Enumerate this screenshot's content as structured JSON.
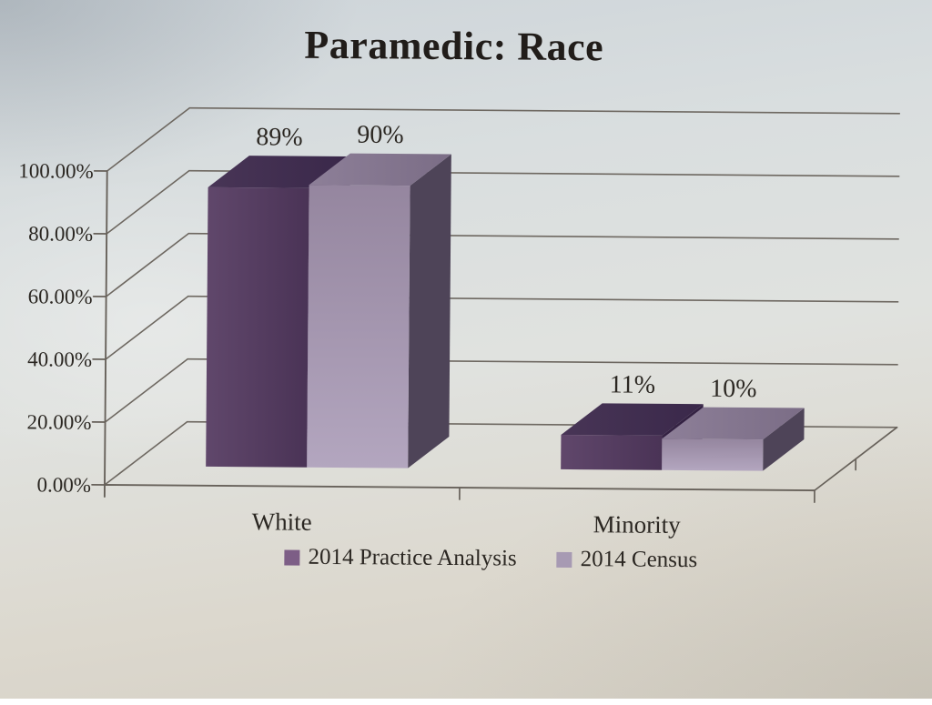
{
  "chart_data": {
    "type": "bar",
    "variant": "3d-clustered-column",
    "title": "Paramedic: Race",
    "categories": [
      "White",
      "Minority"
    ],
    "series": [
      {
        "name": "2014 Practice Analysis",
        "values": [
          89,
          11
        ],
        "data_labels": [
          "89%",
          "11%"
        ],
        "colors": {
          "front_a": "#60476b",
          "front_b": "#4a3356",
          "top_a": "#483556",
          "top_b": "#3a284a",
          "side": "#342243",
          "legend_swatch": "#7d5e86"
        }
      },
      {
        "name": "2014 Census",
        "values": [
          90,
          10
        ],
        "data_labels": [
          "90%",
          "10%"
        ],
        "colors": {
          "front_a": "#95869f",
          "front_b": "#b3a6bf",
          "top_a": "#8d7f98",
          "top_b": "#7b6d86",
          "side": "#4e4458",
          "legend_swatch": "#a79ab3"
        }
      }
    ],
    "y_axis": {
      "min": 0,
      "max": 100,
      "ticks": [
        {
          "value": 0,
          "label": "0.00%"
        },
        {
          "value": 20,
          "label": "20.00%"
        },
        {
          "value": 40,
          "label": "40.00%"
        },
        {
          "value": 60,
          "label": "60.00%"
        },
        {
          "value": 80,
          "label": "80.00%"
        },
        {
          "value": 100,
          "label": "100.00%"
        }
      ]
    },
    "grid": true,
    "legend_position": "bottom"
  },
  "style": {
    "axis_color": "#67615a",
    "grid_color": "#6e6861",
    "text_color": "#2b2722",
    "title_color": "#211d1a"
  }
}
